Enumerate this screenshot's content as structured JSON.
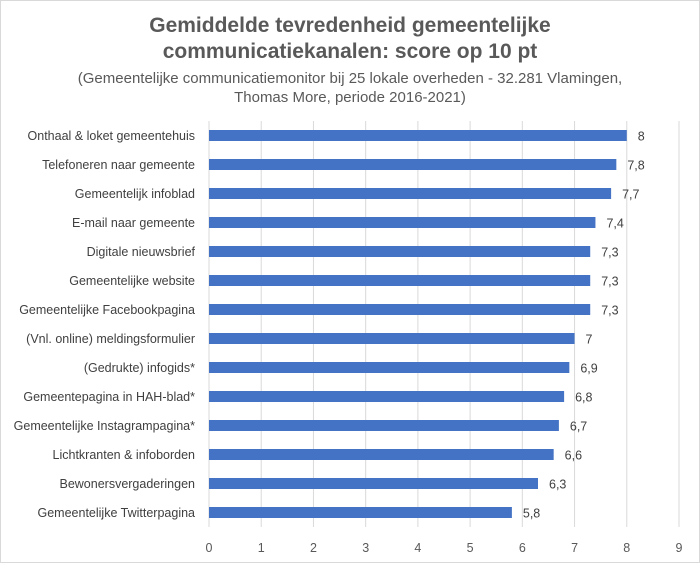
{
  "chart_data": {
    "type": "bar",
    "orientation": "horizontal",
    "title_lines": [
      "Gemiddelde tevredenheid gemeentelijke",
      "communicatiekanalen: score op 10 pt"
    ],
    "subtitle_lines": [
      "(Gemeentelijke communicatiemonitor bij 25 lokale overheden - 32.281 Vlamingen,",
      "Thomas More, periode 2016-2021)"
    ],
    "categories": [
      "Onthaal & loket gemeentehuis",
      "Telefoneren naar gemeente",
      "Gemeentelijk infoblad",
      "E-mail naar gemeente",
      "Digitale nieuwsbrief",
      "Gemeentelijke website",
      "Gemeentelijke Facebookpagina",
      "(Vnl. online) meldingsformulier",
      "(Gedrukte) infogids*",
      "Gemeentepagina in HAH-blad*",
      "Gemeentelijke Instagrampagina*",
      "Lichtkranten & infoborden",
      "Bewonersvergaderingen",
      "Gemeentelijke Twitterpagina"
    ],
    "values": [
      8,
      7.8,
      7.7,
      7.4,
      7.3,
      7.3,
      7.3,
      7,
      6.9,
      6.8,
      6.7,
      6.6,
      6.3,
      5.8
    ],
    "value_labels": [
      "8",
      "7,8",
      "7,7",
      "7,4",
      "7,3",
      "7,3",
      "7,3",
      "7",
      "6,9",
      "6,8",
      "6,7",
      "6,6",
      "6,3",
      "5,8"
    ],
    "xlim": [
      0,
      9
    ],
    "x_ticks": [
      "0",
      "1",
      "2",
      "3",
      "4",
      "5",
      "6",
      "7",
      "8",
      "9"
    ],
    "grid": "vertical",
    "bar_color": "#4472c4"
  }
}
